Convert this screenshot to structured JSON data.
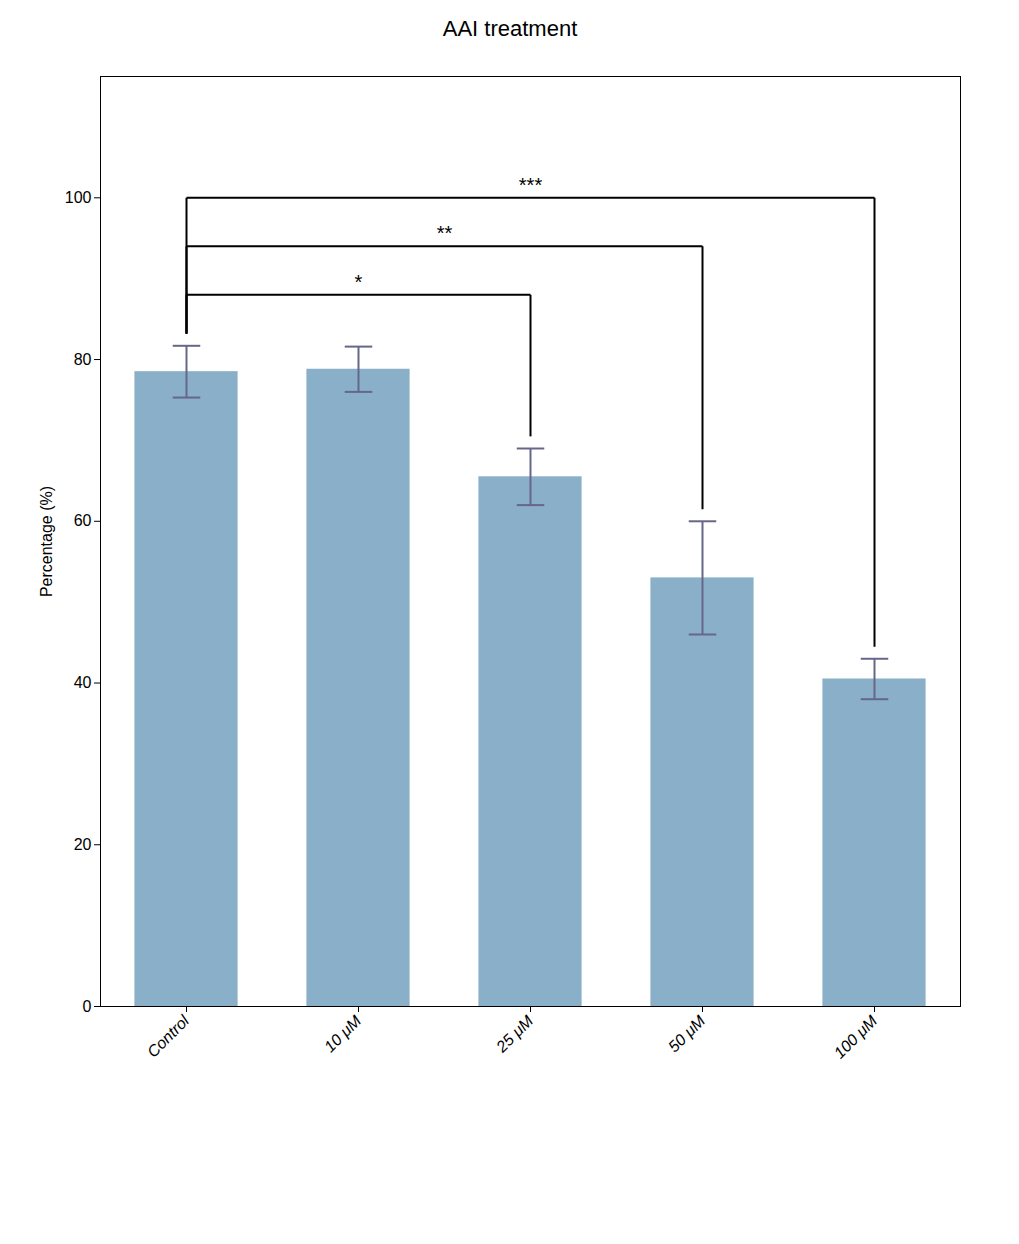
{
  "chart_data": {
    "type": "bar",
    "title": "AAI treatment",
    "categories": [
      "Control",
      "10 μM",
      "25 μM",
      "50 μM",
      "100 μM"
    ],
    "values": [
      78.5,
      78.8,
      65.5,
      53.0,
      40.5
    ],
    "errors": [
      3.2,
      2.8,
      3.5,
      7.0,
      2.5
    ],
    "color": "#8AAFC8",
    "ylabel": "Percentage (%)",
    "ylim": [
      0,
      115
    ],
    "yticks": [
      0,
      20,
      40,
      60,
      80,
      100
    ],
    "grid": false,
    "annotations": [
      {
        "x1": "Control",
        "x2": "25 μM",
        "y": 88,
        "label": "*"
      },
      {
        "x1": "Control",
        "x2": "50 μM",
        "y": 94,
        "label": "**"
      },
      {
        "x1": "Control",
        "x2": "100 μM",
        "y": 100,
        "label": "***"
      }
    ]
  }
}
